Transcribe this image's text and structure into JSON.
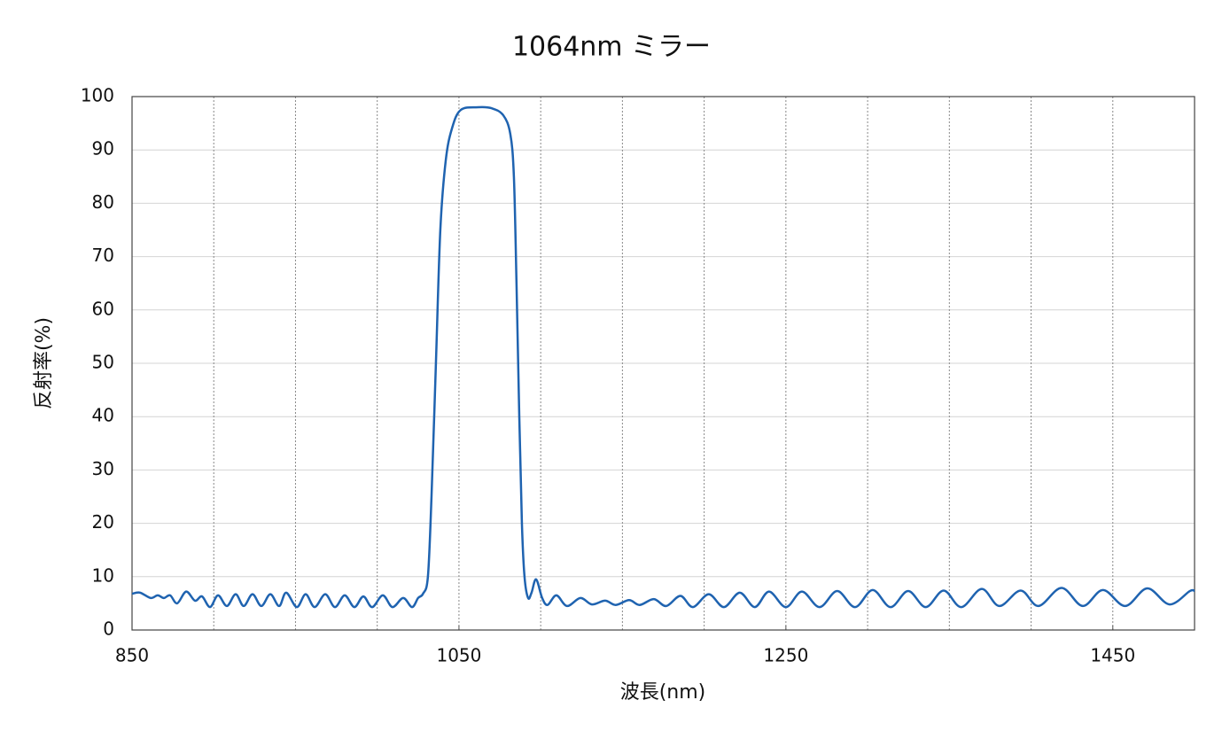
{
  "chart_data": {
    "type": "line",
    "title": "1064nm ミラー",
    "xlabel": "波長(nm)",
    "ylabel": "反射率(%)",
    "xlim": [
      850,
      1500
    ],
    "ylim": [
      0,
      100
    ],
    "xticks": [
      850,
      1050,
      1250,
      1450
    ],
    "xgrid_ticks": [
      900,
      950,
      1000,
      1050,
      1100,
      1150,
      1200,
      1250,
      1300,
      1350,
      1400,
      1450
    ],
    "yticks": [
      0,
      10,
      20,
      30,
      40,
      50,
      60,
      70,
      80,
      90,
      100
    ],
    "grid": true,
    "x": [
      850,
      854.9,
      861.4,
      865.7,
      869.5,
      873.3,
      877.6,
      883.1,
      888.5,
      892.8,
      897.7,
      902.6,
      908,
      913.4,
      918.3,
      923.7,
      929.1,
      934.6,
      940,
      944.3,
      950.8,
      956.2,
      961.7,
      968.2,
      974.1,
      980.1,
      986,
      991.5,
      996.9,
      1003.4,
      1009.3,
      1015.9,
      1021.3,
      1025,
      1028,
      1031,
      1033.2,
      1035.9,
      1038.6,
      1041.9,
      1045.7,
      1051.1,
      1061.9,
      1070.1,
      1077.1,
      1081.4,
      1083.6,
      1085.2,
      1086.9,
      1088.5,
      1090.1,
      1092.3,
      1094.4,
      1097.2,
      1100.9,
      1104.2,
      1109.6,
      1116.1,
      1124.3,
      1131.3,
      1139.4,
      1145.9,
      1154.1,
      1160.6,
      1169.2,
      1176.8,
      1185.5,
      1193.1,
      1202.8,
      1212.1,
      1221.8,
      1231,
      1239.7,
      1250,
      1259.8,
      1270.6,
      1281.4,
      1292.3,
      1303.1,
      1314,
      1324.8,
      1335.6,
      1346.5,
      1357.3,
      1369.8,
      1380.6,
      1393.6,
      1404.5,
      1418.6,
      1431.6,
      1444,
      1457.6,
      1471.1,
      1484.7,
      1497.1,
      1500
    ],
    "series": [
      {
        "name": "反射率",
        "color": "#1f63b0",
        "values": [
          6.8,
          7.0,
          6.0,
          6.5,
          6.0,
          6.5,
          5.0,
          7.2,
          5.5,
          6.3,
          4.3,
          6.5,
          4.5,
          6.7,
          4.5,
          6.7,
          4.5,
          6.7,
          4.5,
          7.0,
          4.3,
          6.7,
          4.3,
          6.7,
          4.3,
          6.5,
          4.3,
          6.3,
          4.3,
          6.5,
          4.3,
          6.0,
          4.3,
          6.0,
          6.8,
          10,
          25,
          50,
          75,
          88,
          94,
          97.5,
          98,
          97.8,
          96.5,
          93,
          85,
          65,
          40,
          20,
          10,
          6,
          7,
          9.5,
          6,
          4.7,
          6.5,
          4.5,
          6,
          4.8,
          5.5,
          4.7,
          5.6,
          4.7,
          5.8,
          4.5,
          6.4,
          4.3,
          6.7,
          4.3,
          7,
          4.3,
          7.2,
          4.3,
          7.2,
          4.3,
          7.3,
          4.3,
          7.5,
          4.3,
          7.3,
          4.3,
          7.4,
          4.3,
          7.7,
          4.5,
          7.4,
          4.5,
          7.9,
          4.5,
          7.5,
          4.5,
          7.8,
          4.8,
          7.3,
          7.3
        ]
      }
    ]
  }
}
